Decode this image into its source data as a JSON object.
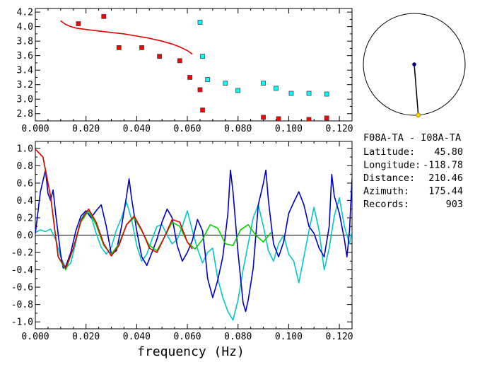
{
  "info": {
    "station_pair": "F08A-TA  - I08A-TA",
    "rows": [
      {
        "label": "Latitude:",
        "value": "45.80"
      },
      {
        "label": "Longitude:",
        "value": "-118.78"
      },
      {
        "label": "Distance:",
        "value": "210.46"
      },
      {
        "label": "Azimuth:",
        "value": "175.44"
      },
      {
        "label": "Records:",
        "value": "903"
      }
    ]
  },
  "azimuth_dial": {
    "azimuth_deg": 175.44,
    "colors": {
      "circle": "#000000",
      "center": "#00008b",
      "tip": "#ffd700"
    }
  },
  "chart_data": [
    {
      "type": "scatter",
      "xlim": [
        0.0,
        0.125
      ],
      "ylim": [
        2.7,
        4.25
      ],
      "x_ticks": [
        "0.000",
        "0.020",
        "0.040",
        "0.060",
        "0.080",
        "0.100",
        "0.120"
      ],
      "y_ticks": [
        "2.8",
        "3.0",
        "3.2",
        "3.4",
        "3.6",
        "3.8",
        "4.0",
        "4.2"
      ],
      "series": [
        {
          "color": "#ff0000",
          "kind": "markers",
          "points": [
            [
              0.017,
              4.04
            ],
            [
              0.027,
              4.14
            ],
            [
              0.033,
              3.71
            ],
            [
              0.042,
              3.71
            ],
            [
              0.049,
              3.59
            ],
            [
              0.057,
              3.53
            ],
            [
              0.061,
              3.3
            ],
            [
              0.065,
              3.13
            ],
            [
              0.066,
              2.85
            ],
            [
              0.09,
              2.75
            ],
            [
              0.096,
              2.73
            ],
            [
              0.108,
              2.72
            ],
            [
              0.115,
              2.74
            ]
          ]
        },
        {
          "color": "#00ffff",
          "kind": "markers",
          "points": [
            [
              0.065,
              4.06
            ],
            [
              0.066,
              3.59
            ],
            [
              0.068,
              3.27
            ],
            [
              0.075,
              3.22
            ],
            [
              0.08,
              3.12
            ],
            [
              0.09,
              3.22
            ],
            [
              0.095,
              3.15
            ],
            [
              0.101,
              3.08
            ],
            [
              0.108,
              3.08
            ],
            [
              0.115,
              3.07
            ]
          ]
        },
        {
          "color": "#e00000",
          "kind": "line",
          "points": [
            [
              0.01,
              4.08
            ],
            [
              0.012,
              4.03
            ],
            [
              0.014,
              4.0
            ],
            [
              0.016,
              3.98
            ],
            [
              0.02,
              3.96
            ],
            [
              0.025,
              3.94
            ],
            [
              0.03,
              3.92
            ],
            [
              0.035,
              3.9
            ],
            [
              0.04,
              3.87
            ],
            [
              0.045,
              3.84
            ],
            [
              0.05,
              3.8
            ],
            [
              0.054,
              3.76
            ],
            [
              0.057,
              3.72
            ],
            [
              0.06,
              3.67
            ],
            [
              0.062,
              3.62
            ]
          ]
        }
      ]
    },
    {
      "type": "line",
      "xlabel": "frequency (Hz)",
      "xlim": [
        0.0,
        0.125
      ],
      "ylim": [
        -1.08,
        1.08
      ],
      "x_ticks": [
        "0.000",
        "0.020",
        "0.040",
        "0.060",
        "0.080",
        "0.100",
        "0.120"
      ],
      "y_ticks": [
        "1.0",
        "0.8",
        "0.6",
        "0.4",
        "0.2",
        "0.0",
        "-0.2",
        "-0.4",
        "-0.6",
        "-0.8",
        "-1.0"
      ],
      "series": [
        {
          "color": "#00c8c8",
          "points": [
            [
              0,
              0.03
            ],
            [
              0.002,
              0.06
            ],
            [
              0.004,
              0.04
            ],
            [
              0.006,
              0.07
            ],
            [
              0.008,
              -0.05
            ],
            [
              0.01,
              -0.25
            ],
            [
              0.012,
              -0.38
            ],
            [
              0.014,
              -0.32
            ],
            [
              0.016,
              -0.08
            ],
            [
              0.018,
              0.18
            ],
            [
              0.02,
              0.28
            ],
            [
              0.022,
              0.22
            ],
            [
              0.024,
              0.02
            ],
            [
              0.026,
              -0.14
            ],
            [
              0.028,
              -0.22
            ],
            [
              0.03,
              -0.14
            ],
            [
              0.032,
              0.06
            ],
            [
              0.034,
              0.2
            ],
            [
              0.036,
              0.38
            ],
            [
              0.038,
              0.18
            ],
            [
              0.04,
              -0.12
            ],
            [
              0.042,
              -0.3
            ],
            [
              0.044,
              -0.22
            ],
            [
              0.046,
              -0.05
            ],
            [
              0.048,
              0.1
            ],
            [
              0.05,
              0.12
            ],
            [
              0.052,
              0.0
            ],
            [
              0.054,
              -0.1
            ],
            [
              0.056,
              -0.05
            ],
            [
              0.058,
              0.1
            ],
            [
              0.06,
              0.28
            ],
            [
              0.062,
              0.05
            ],
            [
              0.064,
              -0.16
            ],
            [
              0.066,
              -0.32
            ],
            [
              0.068,
              -0.2
            ],
            [
              0.07,
              -0.15
            ],
            [
              0.072,
              -0.5
            ],
            [
              0.074,
              -0.72
            ],
            [
              0.076,
              -0.88
            ],
            [
              0.078,
              -0.98
            ],
            [
              0.08,
              -0.75
            ],
            [
              0.082,
              -0.4
            ],
            [
              0.084,
              -0.1
            ],
            [
              0.086,
              0.2
            ],
            [
              0.088,
              0.35
            ],
            [
              0.09,
              0.1
            ],
            [
              0.092,
              -0.18
            ],
            [
              0.094,
              -0.3
            ],
            [
              0.096,
              -0.1
            ],
            [
              0.098,
              0.0
            ],
            [
              0.1,
              -0.22
            ],
            [
              0.102,
              -0.3
            ],
            [
              0.104,
              -0.55
            ],
            [
              0.106,
              -0.25
            ],
            [
              0.108,
              0.05
            ],
            [
              0.11,
              0.32
            ],
            [
              0.112,
              0.05
            ],
            [
              0.114,
              -0.4
            ],
            [
              0.116,
              -0.15
            ],
            [
              0.118,
              0.22
            ],
            [
              0.12,
              0.43
            ],
            [
              0.122,
              0.1
            ],
            [
              0.124,
              -0.1
            ],
            [
              0.125,
              0.05
            ]
          ]
        },
        {
          "color": "#0000c0",
          "points": [
            [
              0,
              0.02
            ],
            [
              0.002,
              0.5
            ],
            [
              0.004,
              0.75
            ],
            [
              0.005,
              0.48
            ],
            [
              0.006,
              0.4
            ],
            [
              0.007,
              0.52
            ],
            [
              0.008,
              0.25
            ],
            [
              0.01,
              -0.22
            ],
            [
              0.011,
              -0.38
            ],
            [
              0.012,
              -0.36
            ],
            [
              0.014,
              -0.2
            ],
            [
              0.016,
              0.05
            ],
            [
              0.018,
              0.22
            ],
            [
              0.02,
              0.28
            ],
            [
              0.022,
              0.2
            ],
            [
              0.024,
              0.28
            ],
            [
              0.026,
              0.35
            ],
            [
              0.028,
              0.1
            ],
            [
              0.03,
              -0.22
            ],
            [
              0.032,
              -0.18
            ],
            [
              0.034,
              0.1
            ],
            [
              0.036,
              0.45
            ],
            [
              0.037,
              0.65
            ],
            [
              0.038,
              0.42
            ],
            [
              0.04,
              0.05
            ],
            [
              0.042,
              -0.25
            ],
            [
              0.044,
              -0.35
            ],
            [
              0.046,
              -0.2
            ],
            [
              0.048,
              -0.05
            ],
            [
              0.05,
              0.15
            ],
            [
              0.052,
              0.3
            ],
            [
              0.054,
              0.2
            ],
            [
              0.056,
              -0.12
            ],
            [
              0.058,
              -0.3
            ],
            [
              0.06,
              -0.2
            ],
            [
              0.062,
              -0.06
            ],
            [
              0.064,
              0.18
            ],
            [
              0.066,
              0.05
            ],
            [
              0.067,
              -0.2
            ],
            [
              0.068,
              -0.5
            ],
            [
              0.07,
              -0.72
            ],
            [
              0.072,
              -0.52
            ],
            [
              0.074,
              -0.25
            ],
            [
              0.076,
              0.25
            ],
            [
              0.077,
              0.75
            ],
            [
              0.078,
              0.5
            ],
            [
              0.08,
              -0.2
            ],
            [
              0.082,
              -0.78
            ],
            [
              0.083,
              -0.88
            ],
            [
              0.084,
              -0.75
            ],
            [
              0.086,
              -0.38
            ],
            [
              0.088,
              0.35
            ],
            [
              0.09,
              0.6
            ],
            [
              0.091,
              0.75
            ],
            [
              0.092,
              0.4
            ],
            [
              0.094,
              -0.1
            ],
            [
              0.096,
              -0.25
            ],
            [
              0.098,
              -0.08
            ],
            [
              0.1,
              0.25
            ],
            [
              0.102,
              0.38
            ],
            [
              0.104,
              0.5
            ],
            [
              0.106,
              0.35
            ],
            [
              0.108,
              0.1
            ],
            [
              0.11,
              0.02
            ],
            [
              0.112,
              -0.15
            ],
            [
              0.114,
              -0.25
            ],
            [
              0.116,
              0.1
            ],
            [
              0.117,
              0.7
            ],
            [
              0.118,
              0.45
            ],
            [
              0.12,
              0.25
            ],
            [
              0.122,
              -0.05
            ],
            [
              0.123,
              -0.25
            ],
            [
              0.124,
              0.05
            ],
            [
              0.125,
              0.65
            ]
          ]
        },
        {
          "color": "#00d000",
          "points": [
            [
              0,
              0.99
            ],
            [
              0.003,
              0.9
            ],
            [
              0.006,
              0.45
            ],
            [
              0.009,
              -0.25
            ],
            [
              0.012,
              -0.4
            ],
            [
              0.015,
              -0.15
            ],
            [
              0.018,
              0.15
            ],
            [
              0.021,
              0.28
            ],
            [
              0.024,
              0.12
            ],
            [
              0.027,
              -0.12
            ],
            [
              0.03,
              -0.22
            ],
            [
              0.033,
              -0.1
            ],
            [
              0.036,
              0.12
            ],
            [
              0.039,
              0.2
            ],
            [
              0.042,
              0.05
            ],
            [
              0.045,
              -0.12
            ],
            [
              0.048,
              -0.18
            ],
            [
              0.051,
              -0.02
            ],
            [
              0.054,
              0.15
            ],
            [
              0.057,
              0.1
            ],
            [
              0.06,
              -0.08
            ],
            [
              0.063,
              -0.16
            ],
            [
              0.066,
              -0.05
            ],
            [
              0.069,
              0.12
            ],
            [
              0.072,
              0.08
            ],
            [
              0.075,
              -0.1
            ],
            [
              0.078,
              -0.12
            ],
            [
              0.081,
              0.06
            ],
            [
              0.084,
              0.12
            ],
            [
              0.087,
              0.0
            ],
            [
              0.09,
              -0.08
            ],
            [
              0.093,
              0.03
            ]
          ]
        },
        {
          "color": "#e00000",
          "points": [
            [
              0,
              0.99
            ],
            [
              0.003,
              0.9
            ],
            [
              0.006,
              0.45
            ],
            [
              0.009,
              -0.25
            ],
            [
              0.012,
              -0.38
            ],
            [
              0.015,
              -0.15
            ],
            [
              0.018,
              0.17
            ],
            [
              0.021,
              0.3
            ],
            [
              0.024,
              0.15
            ],
            [
              0.027,
              -0.1
            ],
            [
              0.03,
              -0.24
            ],
            [
              0.033,
              -0.12
            ],
            [
              0.036,
              0.12
            ],
            [
              0.039,
              0.22
            ],
            [
              0.042,
              0.06
            ],
            [
              0.045,
              -0.15
            ],
            [
              0.048,
              -0.2
            ],
            [
              0.051,
              -0.02
            ],
            [
              0.054,
              0.18
            ],
            [
              0.057,
              0.15
            ],
            [
              0.06,
              -0.08
            ],
            [
              0.062,
              -0.16
            ]
          ]
        }
      ]
    }
  ]
}
